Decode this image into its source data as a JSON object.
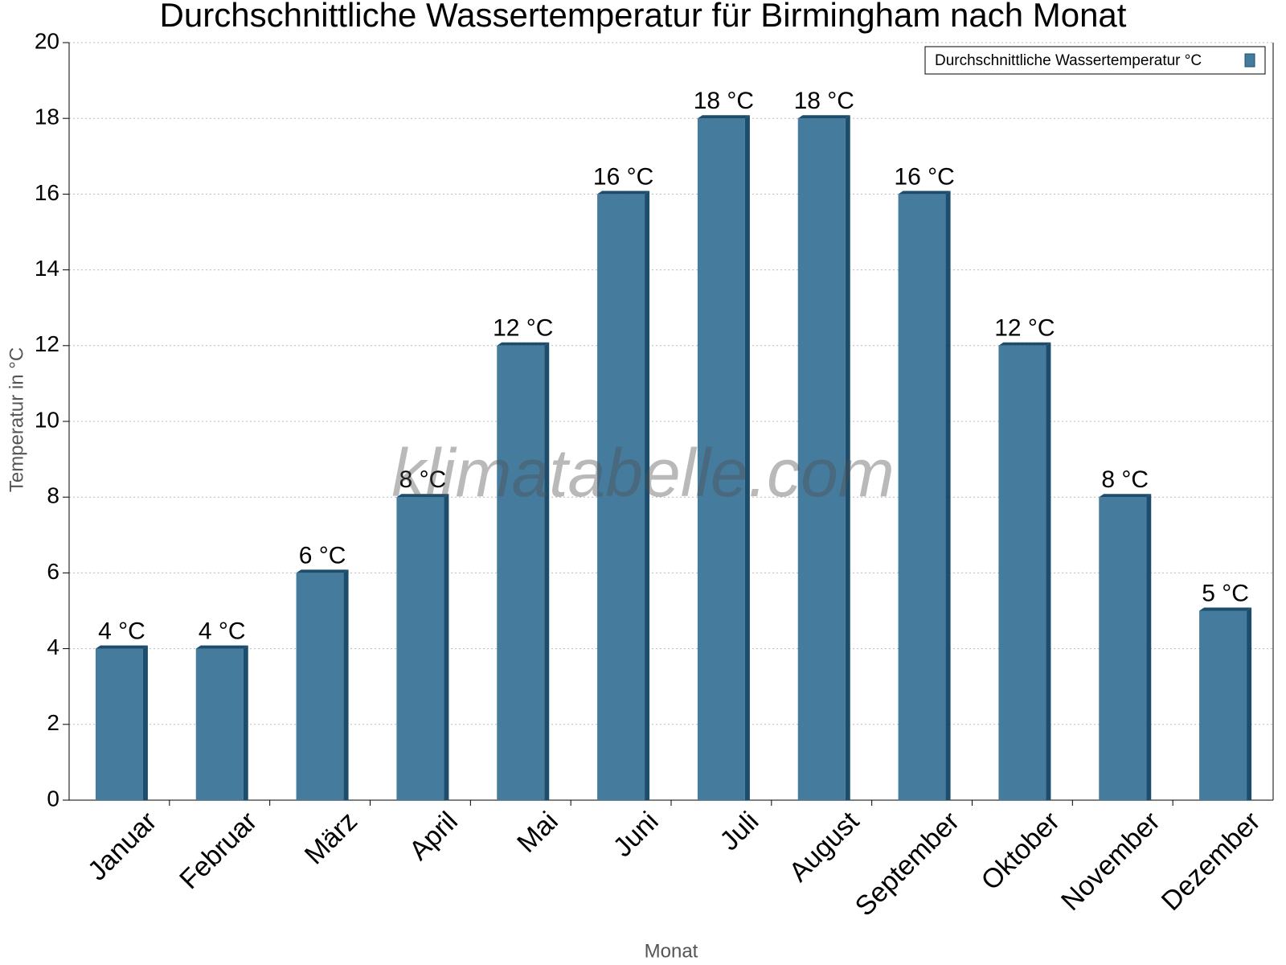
{
  "chart_data": {
    "type": "bar",
    "title": "Durchschnittliche Wassertemperatur für Birmingham nach Monat",
    "x_label": "Monat",
    "y_label": "Temperatur in °C",
    "watermark": "klimatabelle.com",
    "categories": [
      "Januar",
      "Februar",
      "März",
      "April",
      "Mai",
      "Juni",
      "Juli",
      "August",
      "September",
      "Oktober",
      "November",
      "Dezember"
    ],
    "series": [
      {
        "name": "Durchschnittliche Wassertemperatur °C",
        "color": "#457b9d",
        "values": [
          4,
          4,
          6,
          8,
          12,
          16,
          18,
          18,
          16,
          12,
          8,
          5
        ],
        "value_labels": [
          "4 °C",
          "4 °C",
          "6 °C",
          "8 °C",
          "12 °C",
          "16 °C",
          "18 °C",
          "18 °C",
          "16 °C",
          "12 °C",
          "8 °C",
          "5 °C"
        ]
      }
    ],
    "ylim": [
      0,
      20
    ],
    "yticks": [
      0,
      2,
      4,
      6,
      8,
      10,
      12,
      14,
      16,
      18,
      20
    ],
    "grid": true,
    "legend": "top-right"
  }
}
